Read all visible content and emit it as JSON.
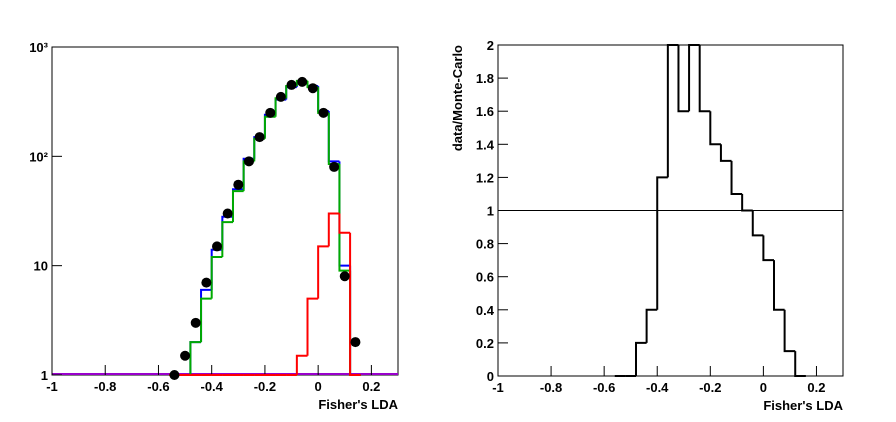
{
  "chart_data": [
    {
      "type": "histogram",
      "log_y": true,
      "xlabel": "Fisher's LDA",
      "bins": [
        -0.56,
        -0.52,
        -0.48,
        -0.44,
        -0.4,
        -0.36,
        -0.32,
        -0.28,
        -0.24,
        -0.2,
        -0.16,
        -0.12,
        -0.08,
        -0.04,
        0,
        0.04,
        0.08,
        0.12,
        0.16
      ],
      "xlim": [
        -1,
        0.3
      ],
      "xticks": [
        -1,
        -0.8,
        -0.6,
        -0.4,
        -0.2,
        0,
        0.2
      ],
      "ylim": [
        1,
        1000
      ],
      "yticks": [
        1,
        10,
        {
          "value": 100,
          "label": "10²"
        },
        {
          "value": 1000,
          "label": "10³"
        }
      ],
      "series": [
        {
          "color": "#0000ff",
          "style": "step",
          "values": [
            1,
            1,
            2,
            6,
            14,
            28,
            50,
            95,
            150,
            240,
            330,
            430,
            470,
            440,
            260,
            90,
            10,
            1
          ]
        },
        {
          "color": "#00aa00",
          "style": "step",
          "values": [
            1,
            1,
            2,
            5,
            12,
            25,
            48,
            90,
            145,
            230,
            340,
            440,
            490,
            430,
            250,
            85,
            9,
            1
          ]
        },
        {
          "color": "#ff0000",
          "style": "step",
          "values": [
            1,
            1,
            1,
            1,
            1,
            1,
            1,
            1,
            1,
            1,
            1,
            1,
            1.5,
            5,
            15,
            30,
            20,
            1
          ]
        },
        {
          "color": "#000000",
          "style": "points",
          "values": [
            1,
            1.5,
            3,
            7,
            15,
            30,
            55,
            90,
            150,
            250,
            350,
            450,
            480,
            420,
            250,
            80,
            8,
            2
          ]
        }
      ]
    },
    {
      "type": "histogram",
      "log_y": false,
      "xlabel": "Fisher's LDA",
      "ylabel": "data/Monte-Carlo",
      "bins": [
        -0.56,
        -0.52,
        -0.48,
        -0.44,
        -0.4,
        -0.36,
        -0.32,
        -0.28,
        -0.24,
        -0.2,
        -0.16,
        -0.12,
        -0.08,
        -0.04,
        0,
        0.04,
        0.08,
        0.12,
        0.16
      ],
      "xlim": [
        -1,
        0.3
      ],
      "xticks": [
        -1,
        -0.8,
        -0.6,
        -0.4,
        -0.2,
        0,
        0.2
      ],
      "ylim": [
        0,
        2
      ],
      "yticks": [
        0,
        0.2,
        0.4,
        0.6,
        0.8,
        1,
        1.2,
        1.4,
        1.6,
        1.8,
        2
      ],
      "reference_line": 1,
      "series": [
        {
          "color": "#000000",
          "style": "step",
          "values": [
            0,
            0,
            0.2,
            0.4,
            1.2,
            2,
            1.6,
            2,
            1.6,
            1.4,
            1.3,
            1.1,
            1,
            0.85,
            0.7,
            0.4,
            0.15,
            0
          ]
        }
      ]
    }
  ]
}
